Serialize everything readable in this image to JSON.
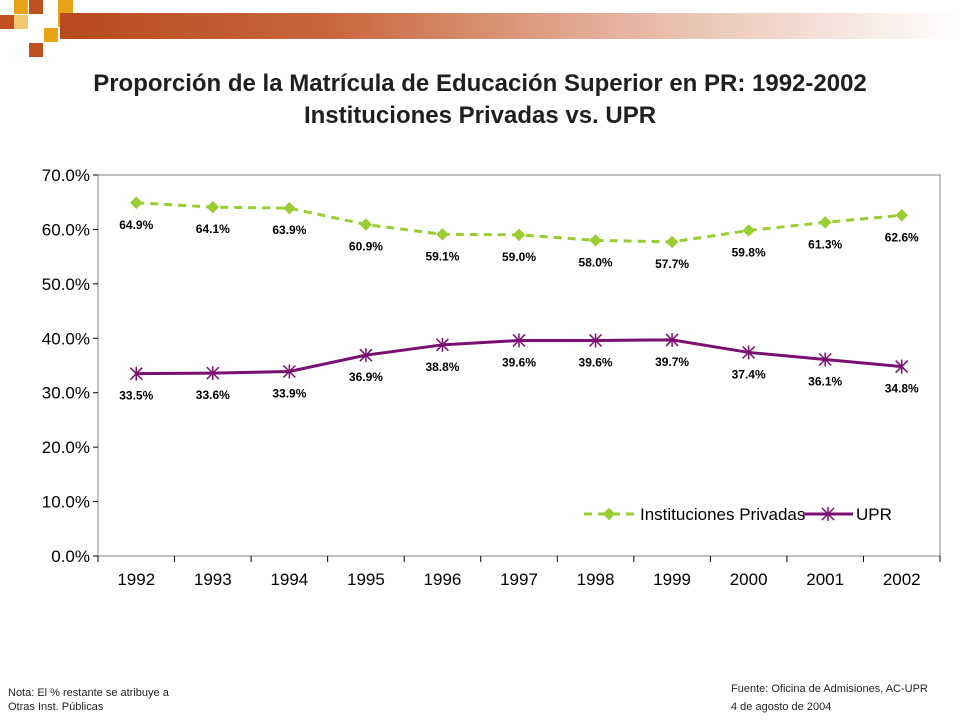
{
  "header": {
    "title_line1": "Proporción de la Matrícula de Educación Superior en PR: 1992-2002",
    "title_line2": "Instituciones Privadas vs. UPR"
  },
  "colors": {
    "privadas": "#9acd32",
    "upr": "#7b1073",
    "banner": "#b84a1c",
    "square_gold": "#e8a317",
    "square_rust": "#c0501f"
  },
  "chart_data": {
    "type": "line",
    "categories": [
      "1992",
      "1993",
      "1994",
      "1995",
      "1996",
      "1997",
      "1998",
      "1999",
      "2000",
      "2001",
      "2002"
    ],
    "series": [
      {
        "name": "Instituciones Privadas",
        "values": [
          64.9,
          64.1,
          63.9,
          60.9,
          59.1,
          59.0,
          58.0,
          57.7,
          59.8,
          61.3,
          62.6
        ],
        "labels": [
          "64.9%",
          "64.1%",
          "63.9%",
          "60.9%",
          "59.1%",
          "59.0%",
          "58.0%",
          "57.7%",
          "59.8%",
          "61.3%",
          "62.6%"
        ],
        "line_style": "dashed",
        "marker": "diamond"
      },
      {
        "name": "UPR",
        "values": [
          33.5,
          33.6,
          33.9,
          36.9,
          38.8,
          39.6,
          39.6,
          39.7,
          37.4,
          36.1,
          34.8
        ],
        "labels": [
          "33.5%",
          "33.6%",
          "33.9%",
          "36.9%",
          "38.8%",
          "39.6%",
          "39.6%",
          "39.7%",
          "37.4%",
          "36.1%",
          "34.8%"
        ],
        "line_style": "solid",
        "marker": "asterisk"
      }
    ],
    "yticks": [
      "0.0%",
      "10.0%",
      "20.0%",
      "30.0%",
      "40.0%",
      "50.0%",
      "60.0%",
      "70.0%"
    ],
    "ylim": [
      0,
      70
    ],
    "grid": false,
    "legend_position": "bottom-right"
  },
  "footer": {
    "note_line1": "Nota: El % restante se atribuye a",
    "note_line2": "Otras Inst. Públicas",
    "source_line1": "Fuente: Oficina de Admisiones, AC-UPR",
    "source_line2": "4 de agosto de 2004"
  }
}
